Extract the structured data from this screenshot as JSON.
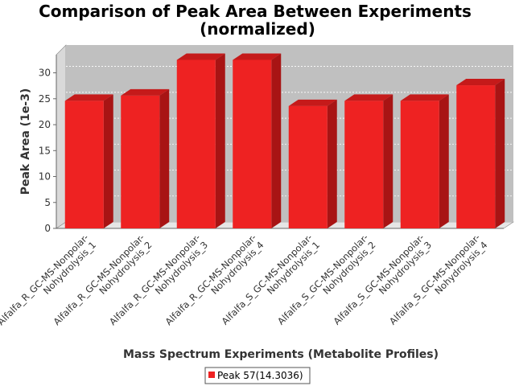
{
  "chart_data": {
    "type": "bar",
    "title": "Comparison of Peak Area Between Experiments",
    "subtitle": "(normalized)",
    "xlabel": "Mass Spectrum Experiments (Metabolite Profiles)",
    "ylabel": "Peak Area (1e-3)",
    "ylim": [
      0,
      33.5
    ],
    "yticks": [
      0,
      5,
      10,
      15,
      20,
      25,
      30
    ],
    "grid": true,
    "legend_position": "bottom-center",
    "categories": [
      [
        "Alfalfa_R_GC-MS-Nonpolar-",
        "Nohydrolysis_1"
      ],
      [
        "Alfalfa_R_GC-MS-Nonpolar-",
        "Nohydrolysis_2"
      ],
      [
        "Alfalfa_R_GC-MS-Nonpolar-",
        "Nohydrolysis_3"
      ],
      [
        "Alfalfa_R_GC-MS-Nonpolar-",
        "Nohydrolysis_4"
      ],
      [
        "Alfalfa_S_GC-MS-Nonpolar-",
        "Nohydrolysis_1"
      ],
      [
        "Alfalfa_S_GC-MS-Nonpolar-",
        "Nohydrolysis_2"
      ],
      [
        "Alfalfa_S_GC-MS-Nonpolar-",
        "Nohydrolysis_3"
      ],
      [
        "Alfalfa_S_GC-MS-Nonpolar-",
        "Nohydrolysis_4"
      ]
    ],
    "series": [
      {
        "name": "Peak 57(14.3036)",
        "color": "#ee2222",
        "values": [
          24.6,
          25.6,
          32.5,
          32.5,
          23.6,
          24.6,
          24.6,
          27.6
        ]
      }
    ]
  }
}
